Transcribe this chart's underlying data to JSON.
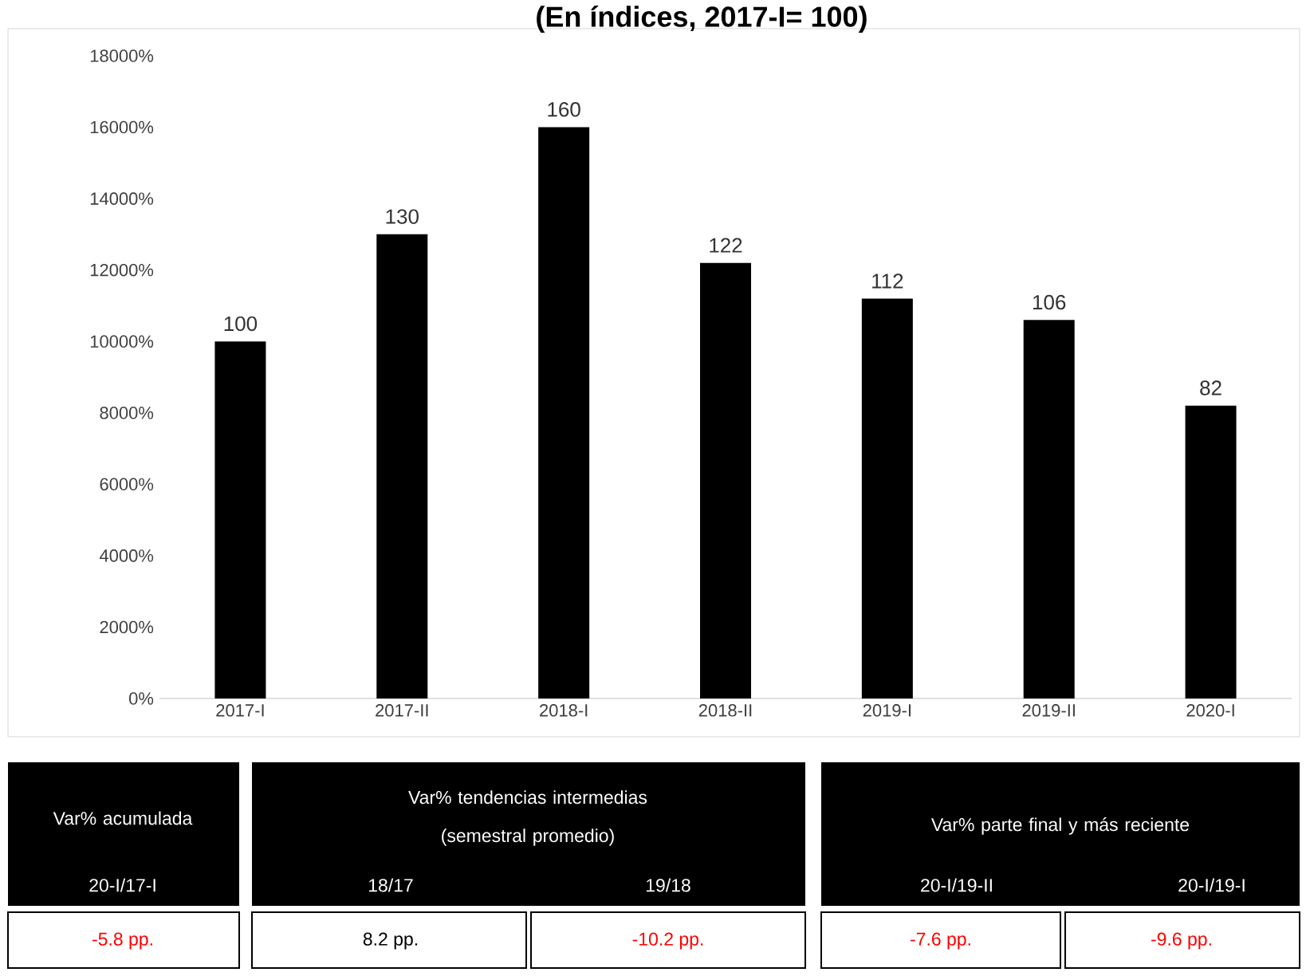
{
  "chart_data": {
    "type": "bar",
    "title": "(En índices, 2017-I= 100)",
    "categories": [
      "2017-I",
      "2017-II",
      "2018-I",
      "2018-II",
      "2019-I",
      "2019-II",
      "2020-I"
    ],
    "values": [
      100,
      130,
      160,
      122,
      112,
      106,
      82
    ],
    "color": "#000000",
    "data_labels": true,
    "ylim": [
      0,
      180
    ],
    "yticks": [
      {
        "value": 0,
        "label": "0%"
      },
      {
        "value": 20,
        "label": "2000%"
      },
      {
        "value": 40,
        "label": "4000%"
      },
      {
        "value": 60,
        "label": "6000%"
      },
      {
        "value": 80,
        "label": "8000%"
      },
      {
        "value": 100,
        "label": "10000%"
      },
      {
        "value": 120,
        "label": "12000%"
      },
      {
        "value": 140,
        "label": "14000%"
      },
      {
        "value": 160,
        "label": "16000%"
      },
      {
        "value": 180,
        "label": "18000%"
      }
    ],
    "annotations": [
      "Var% acumulada",
      "20-I/17-I",
      "-5.8 pp.",
      "Var% tendencias intermedias (semestral promedio)",
      "18/17",
      "19/18",
      "8.2 pp.",
      "-10.2 pp.",
      "Var% parte final y más reciente",
      "20-I/19-II",
      "20-I/19-I",
      "-7.6 pp.",
      "-9.6 pp."
    ]
  }
}
